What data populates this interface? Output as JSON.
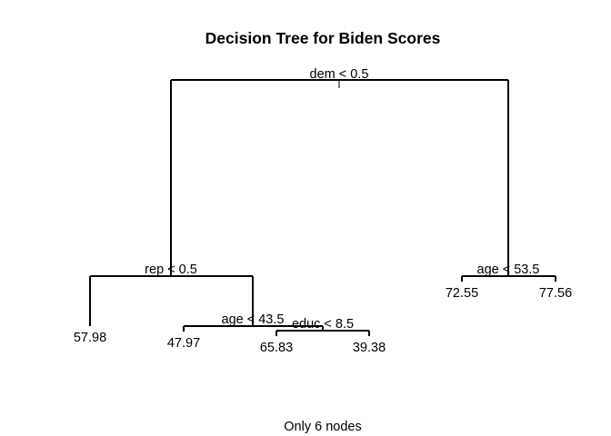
{
  "title": "Decision Tree for Biden Scores",
  "caption": "Only 6 nodes",
  "tree": {
    "root_split": "dem < 0.5",
    "rep_split": "rep < 0.5",
    "age_split_left": "age < 43.5",
    "educ_split": "educ < 8.5",
    "age_split_right": "age < 53.5",
    "leaves": {
      "rep_left": "57.98",
      "age_left": "47.97",
      "educ_left": "65.83",
      "educ_right": "39.38",
      "age_right_left": "72.55",
      "age_right_right": "77.56"
    }
  }
}
